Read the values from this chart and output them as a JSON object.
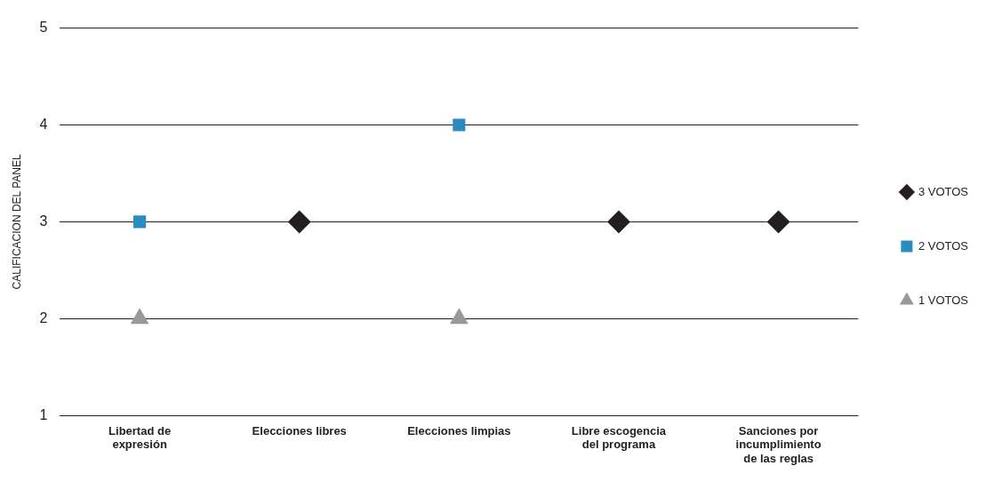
{
  "chart_data": {
    "type": "scatter",
    "ylabel": "CALIFICACION DEL PANEL",
    "categories": [
      "Libertad de\nexpresión",
      "Elecciones libres",
      "Elecciones limpias",
      "Libre escogencia\ndel programa",
      "Sanciones por\nincumplimiento\nde las reglas"
    ],
    "series": [
      {
        "name": "3 VOTOS",
        "color": "#231f20",
        "marker": "diamond",
        "values": [
          null,
          3,
          null,
          3,
          3
        ]
      },
      {
        "name": "2 VOTOS",
        "color": "#2a8bbf",
        "marker": "square",
        "values": [
          3,
          null,
          4,
          null,
          null
        ]
      },
      {
        "name": "1 VOTOS",
        "color": "#999999",
        "marker": "triangle",
        "values": [
          2,
          null,
          2,
          null,
          null
        ]
      }
    ],
    "ylim": [
      1,
      5
    ],
    "yticks": [
      1,
      2,
      3,
      4,
      5
    ],
    "grid": "y",
    "legend": "right"
  }
}
